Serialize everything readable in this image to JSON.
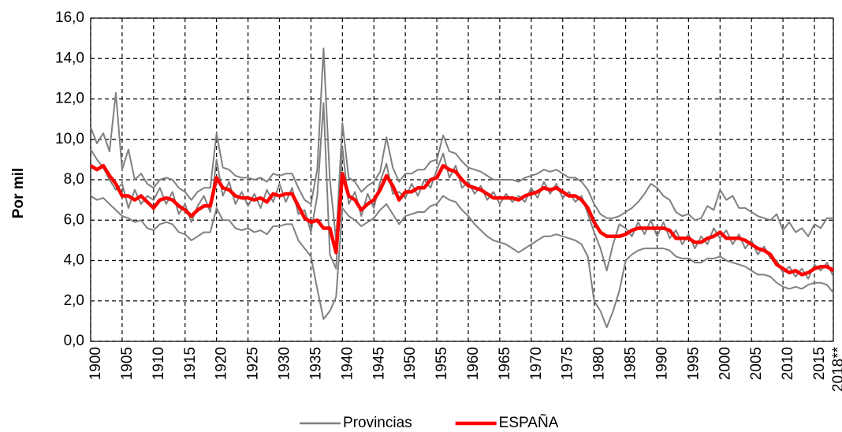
{
  "chart_data": {
    "type": "line",
    "ylabel": "Por mil",
    "x": [
      1900,
      1901,
      1902,
      1903,
      1904,
      1905,
      1906,
      1907,
      1908,
      1909,
      1910,
      1911,
      1912,
      1913,
      1914,
      1915,
      1916,
      1917,
      1918,
      1919,
      1920,
      1921,
      1922,
      1923,
      1924,
      1925,
      1926,
      1927,
      1928,
      1929,
      1930,
      1931,
      1932,
      1933,
      1934,
      1935,
      1936,
      1937,
      1938,
      1939,
      1940,
      1941,
      1942,
      1943,
      1944,
      1945,
      1946,
      1947,
      1948,
      1949,
      1950,
      1951,
      1952,
      1953,
      1954,
      1955,
      1956,
      1957,
      1958,
      1959,
      1960,
      1961,
      1962,
      1963,
      1964,
      1965,
      1966,
      1967,
      1968,
      1969,
      1970,
      1971,
      1972,
      1973,
      1974,
      1975,
      1976,
      1977,
      1978,
      1979,
      1980,
      1981,
      1982,
      1983,
      1984,
      1985,
      1986,
      1987,
      1988,
      1989,
      1990,
      1991,
      1992,
      1993,
      1994,
      1995,
      1996,
      1997,
      1998,
      1999,
      2000,
      2001,
      2002,
      2003,
      2004,
      2005,
      2006,
      2007,
      2008,
      2009,
      2010,
      2011,
      2012,
      2013,
      2014,
      2015,
      2016,
      2017,
      2018
    ],
    "xlim": [
      1900,
      2018
    ],
    "xticks": [
      1900,
      1905,
      1910,
      1915,
      1920,
      1925,
      1930,
      1935,
      1940,
      1945,
      1950,
      1955,
      1960,
      1965,
      1970,
      1975,
      1980,
      1985,
      1990,
      1995,
      2000,
      2005,
      2010,
      2015,
      {
        "value": 2018,
        "label": "2018**"
      }
    ],
    "ylim": [
      0,
      16
    ],
    "yticks": [
      {
        "value": 0,
        "label": "0,0"
      },
      {
        "value": 2,
        "label": "2,0"
      },
      {
        "value": 4,
        "label": "4,0"
      },
      {
        "value": 6,
        "label": "6,0"
      },
      {
        "value": 8,
        "label": "8,0"
      },
      {
        "value": 10,
        "label": "10,0"
      },
      {
        "value": 12,
        "label": "12,0"
      },
      {
        "value": 14,
        "label": "14,0"
      },
      {
        "value": 16,
        "label": "16,0"
      }
    ],
    "grid": true,
    "legend": "bottom",
    "series": [
      {
        "name": "Provincias",
        "color": "#808080",
        "values": [
          [
            10.6,
            9.8,
            10.3,
            9.4,
            12.3,
            8.5,
            9.5,
            8.0,
            8.3,
            7.8,
            7.6,
            8.0,
            8.1,
            8.0,
            7.6,
            7.4,
            7.0,
            7.4,
            7.6,
            7.6,
            10.3,
            8.6,
            8.5,
            8.2,
            8.1,
            8.1,
            8.0,
            8.1,
            7.9,
            8.3,
            8.2,
            8.3,
            8.3,
            7.6,
            7.0,
            6.8,
            8.5,
            14.5,
            8.0,
            5.0,
            10.8,
            8.1,
            7.9,
            7.4,
            7.7,
            7.9,
            8.4,
            10.1,
            8.6,
            7.9,
            8.3,
            8.3,
            8.5,
            8.5,
            8.9,
            9.0,
            10.2,
            9.4,
            9.3,
            8.9,
            8.6,
            8.5,
            8.4,
            8.2,
            8.0,
            8.0,
            8.0,
            8.0,
            7.9,
            8.1,
            8.2,
            8.3,
            8.5,
            8.4,
            8.5,
            8.3,
            8.1,
            8.1,
            7.9,
            7.5,
            6.8,
            6.3,
            6.1,
            6.1,
            6.2,
            6.4,
            6.6,
            6.9,
            7.3,
            7.8,
            7.6,
            7.2,
            7.0,
            6.4,
            6.2,
            6.3,
            6.0,
            6.1,
            6.7,
            6.5,
            7.5,
            7.0,
            7.2,
            6.6,
            6.6,
            6.4,
            6.2,
            6.1,
            6.0,
            6.3,
            5.5,
            5.9,
            5.4,
            5.6,
            5.2,
            5.8,
            5.6,
            6.1,
            6.1
          ],
          [
            7.2,
            7.0,
            7.1,
            6.8,
            6.5,
            6.2,
            6.1,
            5.9,
            6.0,
            5.6,
            5.5,
            5.8,
            5.9,
            5.8,
            5.4,
            5.3,
            5.0,
            5.2,
            5.4,
            5.4,
            6.6,
            6.0,
            6.0,
            5.6,
            5.5,
            5.6,
            5.4,
            5.5,
            5.3,
            5.7,
            5.7,
            5.8,
            5.8,
            5.0,
            4.6,
            4.2,
            2.6,
            1.1,
            1.5,
            2.2,
            6.6,
            6.2,
            6.0,
            5.7,
            5.9,
            6.1,
            6.5,
            6.8,
            6.3,
            5.8,
            6.2,
            6.3,
            6.4,
            6.4,
            6.7,
            6.8,
            7.2,
            7.0,
            6.9,
            6.5,
            6.2,
            5.8,
            5.5,
            5.2,
            5.0,
            4.9,
            4.8,
            4.6,
            4.4,
            4.6,
            4.8,
            5.0,
            5.2,
            5.2,
            5.3,
            5.2,
            5.1,
            5.0,
            4.8,
            4.2,
            2.0,
            1.5,
            0.7,
            1.5,
            2.5,
            4.0,
            4.3,
            4.5,
            4.6,
            4.6,
            4.6,
            4.6,
            4.5,
            4.2,
            4.1,
            4.1,
            3.9,
            3.9,
            4.1,
            4.1,
            4.2,
            4.0,
            3.9,
            3.8,
            3.7,
            3.5,
            3.3,
            3.3,
            3.2,
            2.9,
            2.7,
            2.6,
            2.7,
            2.6,
            2.8,
            2.9,
            2.9,
            2.8,
            2.4
          ],
          [
            9.5,
            9.0,
            8.6,
            8.0,
            7.5,
            7.8,
            6.6,
            7.5,
            6.8,
            7.2,
            7.0,
            7.6,
            6.8,
            7.4,
            6.3,
            6.8,
            5.9,
            6.7,
            7.2,
            6.4,
            9.0,
            7.2,
            7.9,
            6.8,
            7.4,
            6.7,
            7.3,
            6.6,
            7.5,
            6.9,
            7.8,
            6.9,
            7.6,
            6.3,
            6.5,
            5.4,
            7.2,
            11.8,
            4.3,
            3.6,
            9.6,
            6.8,
            7.4,
            6.2,
            7.3,
            6.6,
            7.9,
            8.8,
            7.3,
            7.4,
            7.1,
            7.8,
            7.2,
            8.0,
            7.6,
            8.5,
            9.3,
            8.1,
            8.7,
            7.6,
            7.9,
            7.3,
            7.7,
            7.0,
            7.4,
            6.8,
            7.3,
            6.9,
            7.2,
            6.9,
            7.6,
            7.1,
            7.9,
            7.3,
            7.8,
            7.1,
            7.4,
            6.9,
            7.2,
            6.3,
            5.4,
            4.6,
            3.5,
            4.8,
            5.8,
            5.6,
            5.2,
            5.9,
            5.3,
            6.0,
            5.2,
            5.9,
            5.1,
            5.5,
            4.8,
            5.3,
            4.6,
            5.2,
            4.8,
            5.6,
            5.1,
            5.5,
            4.8,
            5.3,
            4.6,
            5.0,
            4.3,
            4.7,
            4.1,
            4.0,
            3.4,
            3.7,
            3.2,
            3.6,
            3.1,
            3.8,
            3.5,
            3.9,
            3.2
          ]
        ]
      },
      {
        "name": "ESPAÑA",
        "color": "#ff0000",
        "values": [
          8.7,
          8.5,
          8.7,
          8.2,
          7.8,
          7.2,
          7.2,
          7.0,
          7.2,
          6.9,
          6.6,
          7.0,
          7.1,
          7.0,
          6.7,
          6.5,
          6.2,
          6.5,
          6.7,
          6.7,
          8.1,
          7.6,
          7.5,
          7.2,
          7.1,
          7.1,
          7.0,
          7.1,
          6.9,
          7.3,
          7.2,
          7.3,
          7.3,
          6.7,
          6.1,
          5.9,
          6.0,
          5.6,
          5.6,
          4.4,
          8.3,
          7.2,
          7.0,
          6.5,
          6.8,
          7.0,
          7.5,
          8.2,
          7.7,
          7.0,
          7.4,
          7.4,
          7.6,
          7.6,
          8.0,
          8.1,
          8.7,
          8.5,
          8.4,
          8.0,
          7.7,
          7.6,
          7.5,
          7.3,
          7.1,
          7.1,
          7.1,
          7.1,
          7.0,
          7.2,
          7.3,
          7.4,
          7.6,
          7.5,
          7.6,
          7.4,
          7.2,
          7.2,
          7.0,
          6.6,
          5.9,
          5.4,
          5.2,
          5.2,
          5.2,
          5.3,
          5.5,
          5.6,
          5.6,
          5.6,
          5.6,
          5.6,
          5.5,
          5.1,
          5.1,
          5.1,
          4.9,
          4.9,
          5.1,
          5.2,
          5.4,
          5.1,
          5.1,
          5.1,
          5.0,
          4.8,
          4.6,
          4.5,
          4.3,
          3.8,
          3.6,
          3.4,
          3.5,
          3.3,
          3.4,
          3.6,
          3.7,
          3.7,
          3.5
        ]
      }
    ]
  }
}
